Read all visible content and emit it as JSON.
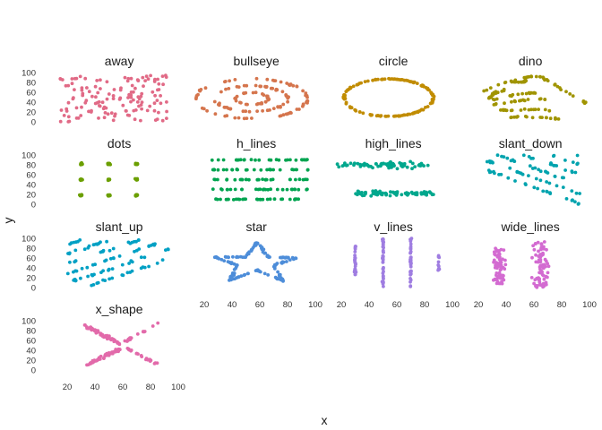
{
  "chart_data": {
    "type": "scatter",
    "title": "",
    "xlabel": "x",
    "ylabel": "y",
    "xlim": [
      15,
      100
    ],
    "ylim": [
      0,
      100
    ],
    "x_ticks": [
      "20",
      "40",
      "60",
      "80",
      "100"
    ],
    "y_ticks": [
      "0",
      "20",
      "40",
      "60",
      "80",
      "100"
    ],
    "grid": false,
    "legend": "none",
    "layout": "facet_wrap 4 columns",
    "panels": [
      {
        "name": "away",
        "color": "#E16A86",
        "shape": "random scatter",
        "x_range": [
          15,
          92
        ],
        "y_range": [
          0,
          95
        ]
      },
      {
        "name": "bullseye",
        "color": "#D5754D",
        "shape": "concentric rings",
        "center": [
          54,
          47
        ],
        "radii": [
          [
            40,
            40
          ],
          [
            26,
            26
          ],
          [
            12,
            12
          ]
        ]
      },
      {
        "name": "circle",
        "color": "#C18C00",
        "shape": "ring",
        "center": [
          54,
          49
        ],
        "radius": [
          32,
          38
        ]
      },
      {
        "name": "dino",
        "color": "#A09400",
        "shape": "dinosaur outline",
        "x_range": [
          22,
          98
        ],
        "y_range": [
          3,
          100
        ]
      },
      {
        "name": "dots",
        "color": "#6B9F00",
        "shape": "3x3 dot clusters",
        "x_centers": [
          30,
          50,
          70
        ],
        "y_centers": [
          18,
          50,
          82
        ]
      },
      {
        "name": "h_lines",
        "color": "#00A450",
        "shape": "horizontal lines",
        "y_levels": [
          10,
          30,
          50,
          70,
          90
        ],
        "x_range": [
          22,
          98
        ]
      },
      {
        "name": "high_lines",
        "color": "#00A78D",
        "shape": "two horizontal bands",
        "y_levels": [
          20,
          80
        ],
        "x_range": [
          17,
          87
        ]
      },
      {
        "name": "slant_down",
        "color": "#00A3AE",
        "shape": "parallel downward slants",
        "x_range": [
          18,
          96
        ],
        "y_range": [
          0,
          100
        ]
      },
      {
        "name": "slant_up",
        "color": "#00A0C4",
        "shape": "parallel upward slants",
        "x_range": [
          20,
          96
        ],
        "y_range": [
          5,
          96
        ]
      },
      {
        "name": "star",
        "color": "#4D8DD9",
        "shape": "five-point star",
        "x_range": [
          27,
          86
        ],
        "y_range": [
          14,
          92
        ]
      },
      {
        "name": "v_lines",
        "color": "#9F7DE1",
        "shape": "vertical lines",
        "x_levels": [
          30,
          50,
          70,
          90
        ],
        "y_range": [
          2,
          100
        ]
      },
      {
        "name": "wide_lines",
        "color": "#D36BD1",
        "shape": "two wide vertical bands",
        "x_levels": [
          35,
          65
        ],
        "y_range": [
          0,
          100
        ]
      },
      {
        "name": "x_shape",
        "color": "#E26AAA",
        "shape": "X cross",
        "x_range": [
          31,
          86
        ],
        "y_range": [
          4,
          97
        ]
      }
    ]
  }
}
